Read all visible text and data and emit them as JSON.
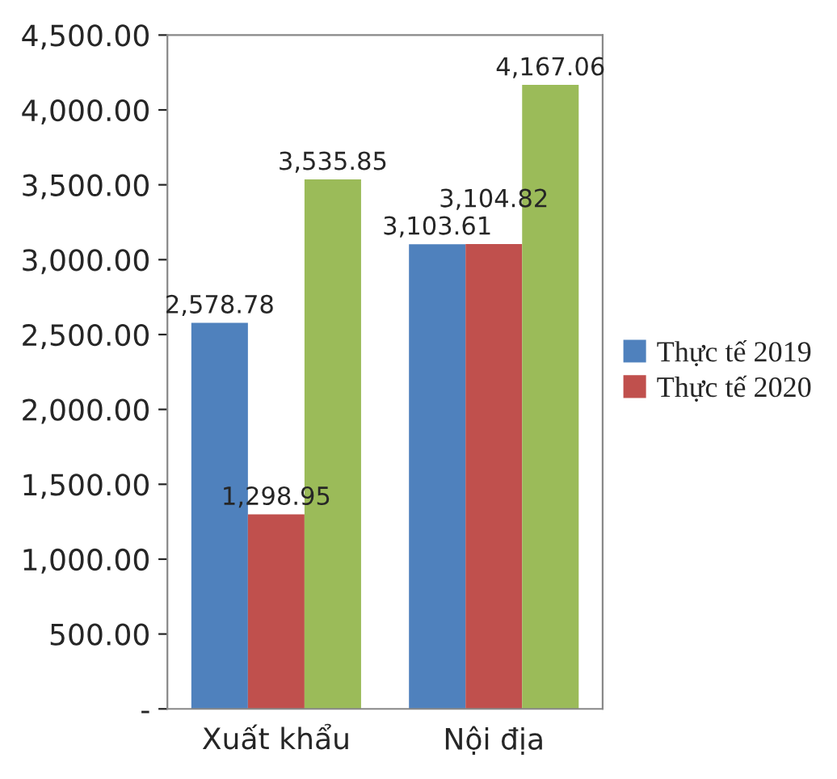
{
  "chart_data": {
    "type": "bar",
    "categories": [
      "Xuất khẩu",
      "Nội địa"
    ],
    "series": [
      {
        "name": "Thực tế 2019",
        "color": "#4f81bd",
        "values": [
          2578.78,
          3103.61
        ],
        "value_labels": [
          "2,578.78",
          "3,103.61"
        ]
      },
      {
        "name": "Thực tế 2020",
        "color": "#c0504d",
        "values": [
          1298.95,
          3104.82
        ],
        "value_labels": [
          "1,298.95",
          "3,104.82"
        ]
      },
      {
        "color": "#9bbb59",
        "values": [
          3535.85,
          4167.06
        ],
        "value_labels": [
          "3,535.85",
          "4,167.06"
        ]
      }
    ],
    "ylim": [
      0,
      4500
    ],
    "yticks": [
      {
        "value": 0,
        "label": "-"
      },
      {
        "value": 500,
        "label": "500.00"
      },
      {
        "value": 1000,
        "label": "1,000.00"
      },
      {
        "value": 1500,
        "label": "1,500.00"
      },
      {
        "value": 2000,
        "label": "2,000.00"
      },
      {
        "value": 2500,
        "label": "2,500.00"
      },
      {
        "value": 3000,
        "label": "3,000.00"
      },
      {
        "value": 3500,
        "label": "3,500.00"
      },
      {
        "value": 4000,
        "label": "4,000.00"
      },
      {
        "value": 4500,
        "label": "4,500.00"
      }
    ],
    "legend": "right",
    "grid": false
  }
}
